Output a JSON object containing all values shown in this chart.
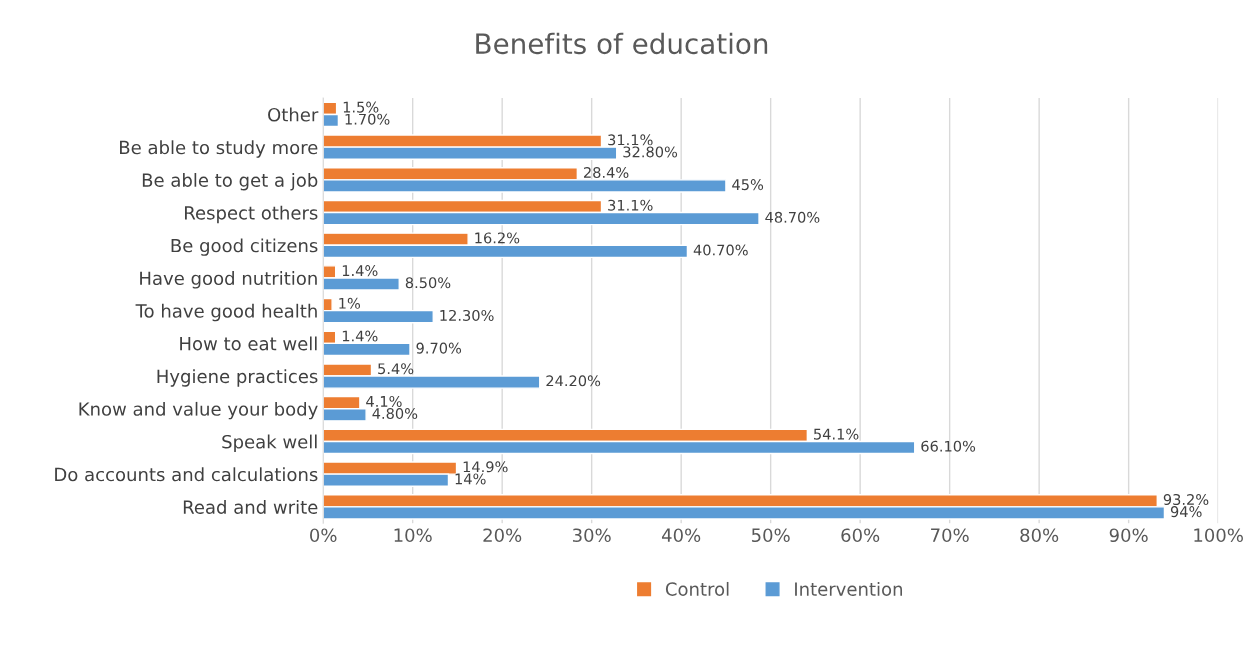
{
  "chart_data": {
    "type": "bar",
    "orientation": "horizontal",
    "title": "Benefits of education",
    "categories": [
      "Other",
      "Be able to study more",
      "Be able to get a job",
      "Respect others",
      "Be good citizens",
      "Have good nutrition",
      "To have good health",
      "How to eat well",
      "Hygiene practices",
      "Know and value your body",
      "Speak well",
      "Do accounts and calculations",
      "Read and write"
    ],
    "series": [
      {
        "name": "Control",
        "color": "#ed7d31",
        "values": [
          1.5,
          31.1,
          28.4,
          31.1,
          16.2,
          1.4,
          1,
          1.4,
          5.4,
          4.1,
          54.1,
          14.9,
          93.2
        ],
        "value_labels": [
          "1.5%",
          "31.1%",
          "28.4%",
          "31.1%",
          "16.2%",
          "1.4%",
          "1%",
          "1.4%",
          "5.4%",
          "4.1%",
          "54.1%",
          "14.9%",
          "93.2%"
        ]
      },
      {
        "name": "Intervention",
        "color": "#5b9bd5",
        "values": [
          1.7,
          32.8,
          45,
          48.7,
          40.7,
          8.5,
          12.3,
          9.7,
          24.2,
          4.8,
          66.1,
          14,
          94
        ],
        "value_labels": [
          "1.70%",
          "32.80%",
          "45%",
          "48.70%",
          "40.70%",
          "8.50%",
          "12.30%",
          "9.70%",
          "24.20%",
          "4.80%",
          "66.10%",
          "14%",
          "94%"
        ]
      }
    ],
    "xlim": [
      0,
      100
    ],
    "xticks": [
      {
        "value": 0,
        "label": "0%"
      },
      {
        "value": 10,
        "label": "10%"
      },
      {
        "value": 20,
        "label": "20%"
      },
      {
        "value": 30,
        "label": "30%"
      },
      {
        "value": 40,
        "label": "40%"
      },
      {
        "value": 50,
        "label": "50%"
      },
      {
        "value": 60,
        "label": "60%"
      },
      {
        "value": 70,
        "label": "70%"
      },
      {
        "value": 80,
        "label": "80%"
      },
      {
        "value": 90,
        "label": "90%"
      },
      {
        "value": 100,
        "label": "100%"
      }
    ],
    "grid": "x",
    "legend": "bottom"
  }
}
